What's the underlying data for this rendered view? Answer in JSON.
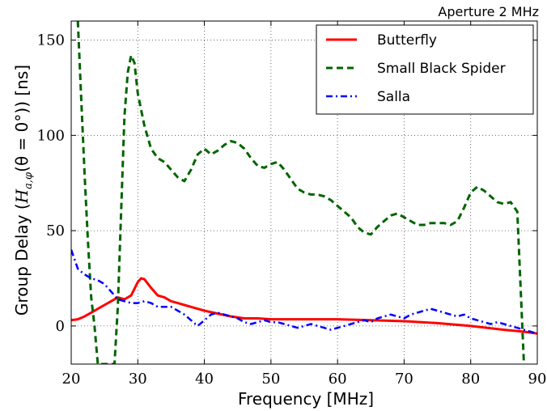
{
  "chart_data": {
    "type": "line",
    "title": "Aperture 2 MHz",
    "xlabel": "Frequency [MHz]",
    "ylabel_text": "Group Delay (",
    "ylabel_math": "H",
    "ylabel_sub": "a,φ",
    "ylabel_arg": "(θ = 0°)) [ns]",
    "xlim": [
      20,
      90
    ],
    "ylim": [
      -20,
      160
    ],
    "xticks": [
      20,
      30,
      40,
      50,
      60,
      70,
      80,
      90
    ],
    "yticks": [
      0,
      50,
      100,
      150
    ],
    "grid": true,
    "legend_position": "top-right",
    "colors": {
      "butterfly": "#ff0000",
      "spider": "#006400",
      "salla": "#0000ff"
    },
    "series": [
      {
        "name": "Butterfly",
        "style": "solid",
        "x": [
          20,
          21,
          22,
          23,
          24,
          25,
          26,
          27,
          28,
          29,
          30,
          30.5,
          31,
          32,
          33,
          34,
          35,
          36,
          37,
          38,
          40,
          42,
          44,
          46,
          48,
          50,
          52,
          55,
          58,
          60,
          65,
          70,
          75,
          80,
          85,
          88,
          90
        ],
        "y": [
          3,
          3.5,
          5,
          7,
          9,
          11,
          13,
          15,
          14,
          16,
          23,
          25,
          24.5,
          20,
          16,
          15,
          13,
          12,
          11,
          10,
          8,
          6.5,
          5,
          4,
          4,
          3.5,
          3.5,
          3.5,
          3.5,
          3.5,
          3,
          2.5,
          1.5,
          0,
          -2,
          -3,
          -4
        ]
      },
      {
        "name": "Small Black Spider",
        "style": "dashed",
        "x": [
          21,
          21.5,
          22,
          22.5,
          23,
          23.5,
          24,
          26.5,
          27,
          27.5,
          28,
          28.5,
          29,
          29.5,
          30,
          31,
          32,
          33,
          34,
          35,
          36,
          37,
          38,
          39,
          40,
          41,
          42,
          43,
          44,
          45,
          46,
          47,
          48,
          49,
          50,
          51,
          52,
          53,
          54,
          55,
          56,
          57,
          58,
          59,
          60,
          61,
          62,
          63,
          64,
          65,
          66,
          67,
          68,
          69,
          70,
          71,
          72,
          73,
          74,
          75,
          76,
          77,
          78,
          79,
          80,
          81,
          82,
          83,
          84,
          85,
          86,
          87,
          88
        ],
        "y": [
          160,
          120,
          80,
          45,
          15,
          0,
          -20,
          -20,
          10,
          60,
          110,
          133,
          142,
          138,
          122,
          105,
          93,
          88,
          86,
          82,
          78,
          76,
          82,
          90,
          93,
          90,
          92,
          95,
          97,
          96,
          93,
          88,
          84,
          83,
          85,
          86,
          82,
          77,
          72,
          70,
          69,
          69,
          68,
          66,
          63,
          60,
          57,
          52,
          49,
          48,
          52,
          55,
          58,
          59,
          57,
          55,
          53,
          53,
          54,
          54,
          54,
          53,
          55,
          62,
          70,
          73,
          71,
          68,
          65,
          64,
          65,
          60,
          -20
        ]
      },
      {
        "name": "Salla",
        "style": "dashdot",
        "x": [
          20,
          21,
          22,
          23,
          24,
          25,
          26,
          27,
          28,
          29,
          30,
          31,
          32,
          33,
          34,
          35,
          36,
          37,
          38,
          39,
          40,
          41,
          42,
          43,
          44,
          45,
          46,
          47,
          48,
          49,
          50,
          51,
          52,
          53,
          54,
          55,
          56,
          57,
          58,
          59,
          60,
          61,
          62,
          63,
          64,
          65,
          66,
          67,
          68,
          69,
          70,
          71,
          72,
          73,
          74,
          75,
          76,
          77,
          78,
          79,
          80,
          81,
          82,
          83,
          84,
          85,
          86,
          87,
          88,
          89,
          90
        ],
        "y": [
          40,
          30,
          27,
          25,
          24,
          22,
          18,
          14,
          13,
          12,
          12,
          13,
          12,
          10,
          10,
          10,
          8,
          6,
          3,
          0,
          3,
          6,
          7,
          6,
          5,
          4,
          2,
          1,
          2,
          3,
          2,
          2,
          1,
          0,
          -1,
          0,
          1,
          0,
          -1,
          -2,
          -1,
          0,
          1,
          2,
          3,
          2,
          4,
          5,
          6,
          5,
          4,
          6,
          7,
          8,
          9,
          8,
          7,
          6,
          5,
          6,
          4,
          3,
          2,
          1,
          2,
          1,
          0,
          -1,
          -2,
          -3,
          -4
        ]
      }
    ]
  }
}
